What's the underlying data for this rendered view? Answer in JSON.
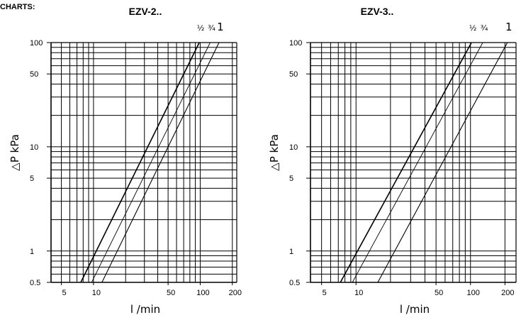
{
  "page_label": "CHARTS:",
  "chart_data": [
    {
      "type": "line",
      "title": "EZV-2..",
      "xlabel": "l /min",
      "ylabel": "△P kPa",
      "xscale": "log",
      "yscale": "log",
      "xlim": [
        4,
        220
      ],
      "ylim": [
        0.5,
        100
      ],
      "grid": true,
      "x_tick_labels": [
        "5",
        "10",
        "50",
        "100",
        "200"
      ],
      "x_tick_values": [
        5,
        10,
        50,
        100,
        200
      ],
      "y_tick_labels": [
        "100",
        "50",
        "10",
        "5",
        "1",
        "0.5"
      ],
      "y_tick_values": [
        100,
        50,
        10,
        5,
        1,
        0.5
      ],
      "series": [
        {
          "name": "½",
          "x": [
            7.6,
            98
          ],
          "y": [
            0.5,
            100
          ]
        },
        {
          "name": "¾",
          "x": [
            9.6,
            124
          ],
          "y": [
            0.5,
            100
          ]
        },
        {
          "name": "1",
          "x": [
            12,
            150
          ],
          "y": [
            0.5,
            100
          ]
        }
      ]
    },
    {
      "type": "line",
      "title": "EZV-3..",
      "xlabel": "l /min",
      "ylabel": "△P kPa",
      "xscale": "log",
      "yscale": "log",
      "xlim": [
        4,
        250
      ],
      "ylim": [
        0.5,
        100
      ],
      "grid": true,
      "x_tick_labels": [
        "5",
        "10",
        "50",
        "100",
        "200"
      ],
      "x_tick_values": [
        5,
        10,
        50,
        100,
        200
      ],
      "y_tick_labels": [
        "100",
        "50",
        "10",
        "5",
        "1",
        "0.5"
      ],
      "y_tick_values": [
        100,
        50,
        10,
        5,
        1,
        0.5
      ],
      "series": [
        {
          "name": "½",
          "x": [
            7.3,
            102
          ],
          "y": [
            0.5,
            100
          ]
        },
        {
          "name": "¾",
          "x": [
            9.3,
            128
          ],
          "y": [
            0.5,
            100
          ]
        },
        {
          "name": "1",
          "x": [
            15.5,
            210
          ],
          "y": [
            0.5,
            100
          ]
        }
      ]
    }
  ]
}
